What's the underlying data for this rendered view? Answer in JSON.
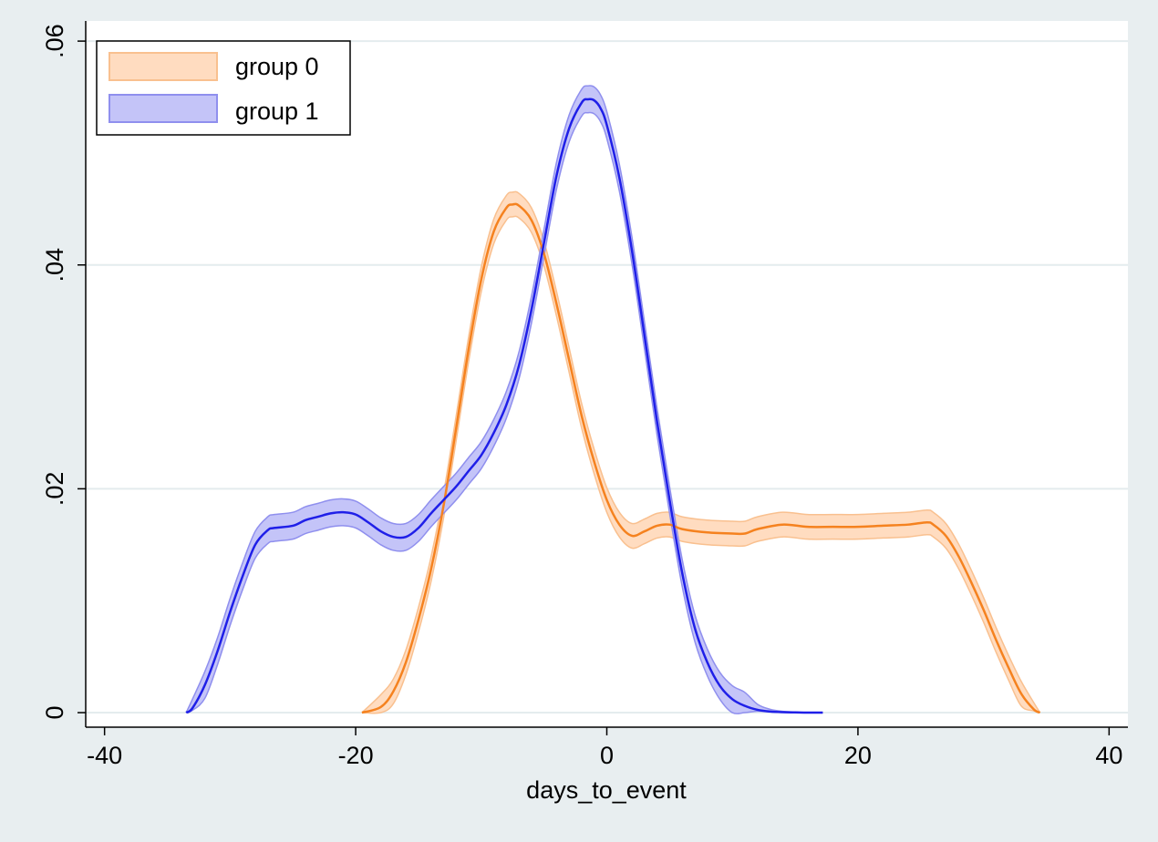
{
  "chart_data": {
    "type": "area",
    "title": "",
    "xlabel": "days_to_event",
    "ylabel": "",
    "xlim": [
      -41.5,
      41.5
    ],
    "ylim": [
      -0.0013,
      0.0618
    ],
    "x_ticks": [
      -40,
      -20,
      0,
      20,
      40
    ],
    "x_tick_labels": [
      "-40",
      "-20",
      "0",
      "20",
      "40"
    ],
    "y_ticks": [
      0,
      0.02,
      0.04,
      0.06
    ],
    "y_tick_labels": [
      "0",
      ".02",
      ".04",
      ".06"
    ],
    "grid": "horizontal",
    "legend_position": "top-left",
    "series": [
      {
        "name": "group 0",
        "color": "#f5821f",
        "band_color": "#ffdcc0",
        "band_edge_color": "#f9c08f",
        "band_halfwidth": 0.0011,
        "x": [
          -19.5,
          -18,
          -17,
          -16,
          -15,
          -14,
          -13,
          -12,
          -11,
          -10,
          -9,
          -8,
          -7.5,
          -7,
          -6,
          -5,
          -4,
          -3,
          -2,
          -1,
          0,
          1,
          2,
          3,
          4,
          5,
          6,
          8,
          10,
          11,
          12,
          14,
          16,
          18,
          20,
          22,
          24,
          25.5,
          26,
          27,
          28,
          29,
          30,
          31,
          32,
          33,
          34,
          34.5
        ],
        "y": [
          0,
          0.0005,
          0.0019,
          0.0045,
          0.0083,
          0.0128,
          0.0185,
          0.0254,
          0.0325,
          0.0387,
          0.043,
          0.0451,
          0.0454,
          0.0453,
          0.044,
          0.041,
          0.0365,
          0.0315,
          0.0265,
          0.0224,
          0.019,
          0.0168,
          0.0158,
          0.0162,
          0.0167,
          0.0168,
          0.0164,
          0.0161,
          0.016,
          0.016,
          0.0164,
          0.0168,
          0.0166,
          0.0166,
          0.0166,
          0.0167,
          0.0168,
          0.017,
          0.0168,
          0.0158,
          0.014,
          0.0117,
          0.0092,
          0.0065,
          0.004,
          0.0017,
          0.0003,
          0
        ]
      },
      {
        "name": "group 1",
        "color": "#1f1fe8",
        "band_color": "#c4c4f8",
        "band_edge_color": "#8f8fee",
        "band_halfwidth": 0.0012,
        "x": [
          -33.5,
          -33,
          -32,
          -31,
          -30,
          -29,
          -28,
          -27,
          -26.5,
          -25,
          -24,
          -23,
          -22,
          -21,
          -20,
          -19,
          -18,
          -17,
          -16,
          -15,
          -14,
          -13,
          -12,
          -11,
          -10,
          -9,
          -8,
          -7,
          -6,
          -5,
          -4,
          -3,
          -2,
          -1.5,
          -1,
          -0.5,
          0,
          1,
          2,
          3,
          4,
          5,
          6,
          7,
          8,
          9,
          10,
          11,
          12,
          13,
          14,
          15,
          16,
          17.2
        ],
        "y": [
          0,
          0.0004,
          0.0025,
          0.0055,
          0.009,
          0.0122,
          0.015,
          0.0163,
          0.0165,
          0.0167,
          0.0172,
          0.0175,
          0.0178,
          0.0179,
          0.0177,
          0.017,
          0.0162,
          0.0157,
          0.0157,
          0.0165,
          0.0178,
          0.019,
          0.0202,
          0.0216,
          0.023,
          0.025,
          0.0275,
          0.031,
          0.036,
          0.042,
          0.048,
          0.0522,
          0.0545,
          0.0548,
          0.0547,
          0.054,
          0.0525,
          0.0478,
          0.0413,
          0.0337,
          0.026,
          0.019,
          0.0125,
          0.0076,
          0.0045,
          0.0024,
          0.0012,
          0.0006,
          0.00025,
          0.0001,
          4e-05,
          2e-05,
          0,
          0
        ]
      }
    ]
  }
}
